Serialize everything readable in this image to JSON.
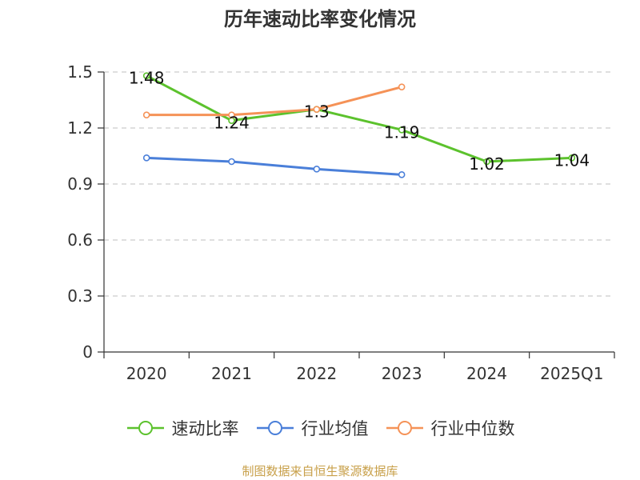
{
  "chart_data": {
    "type": "line",
    "title": "历年速动比率变化情况",
    "categories": [
      "2020",
      "2021",
      "2022",
      "2023",
      "2024",
      "2025Q1"
    ],
    "ylim": [
      0,
      1.5
    ],
    "yticks": [
      "0",
      "0.3",
      "0.6",
      "0.9",
      "1.2",
      "1.5"
    ],
    "grid": true,
    "legend_position": "bottom",
    "series": [
      {
        "name": "速动比率",
        "color": "#5cc22d",
        "values": [
          1.48,
          1.24,
          1.3,
          1.19,
          1.02,
          1.04
        ],
        "labels": [
          "1.48",
          "1.24",
          "1.3",
          "1.19",
          "1.02",
          "1.04"
        ]
      },
      {
        "name": "行业均值",
        "color": "#4a7fd9",
        "values": [
          1.04,
          1.02,
          0.98,
          0.95,
          null,
          null
        ]
      },
      {
        "name": "行业中位数",
        "color": "#f59257",
        "values": [
          1.27,
          1.27,
          1.3,
          1.42,
          null,
          null
        ]
      }
    ]
  },
  "source_note": "制图数据来自恒生聚源数据库"
}
